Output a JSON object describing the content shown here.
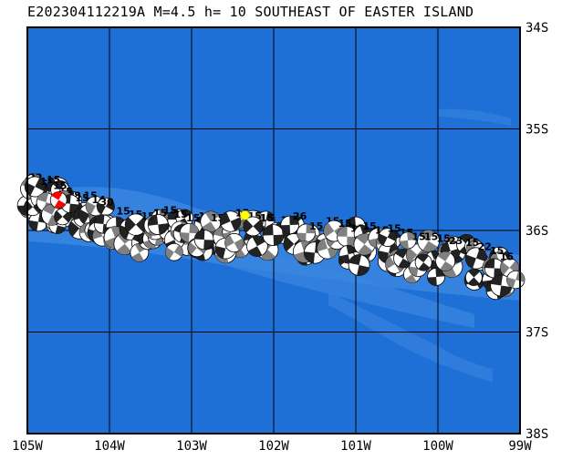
{
  "title": "E202304112219A M=4.5 h= 10 SOUTHEAST OF EASTER ISLAND",
  "event": {
    "id": "E202304112219A",
    "magnitude": "M=4.5",
    "depth": "h= 10",
    "region": "SOUTHEAST OF EASTER ISLAND",
    "lon": -102.35,
    "lat": -35.85
  },
  "bounds": {
    "lon_min": -105,
    "lon_max": -99,
    "lat_min": -38,
    "lat_max": -34
  },
  "lon_ticks": [
    "105W",
    "104W",
    "103W",
    "102W",
    "101W",
    "100W",
    "99W"
  ],
  "lat_ticks": [
    "34S",
    "35S",
    "36S",
    "37S",
    "38S"
  ],
  "colors": {
    "ocean_deep": "#1e6fd6",
    "ocean_shallow": "#3a86e0",
    "grid": "#000000",
    "frame": "#000000",
    "epicenter": "#ffff00",
    "highlight_mechanism": "#ff0000",
    "mechanism_dark": "#222222",
    "mechanism_light": "#ffffff",
    "mechanism_grey": "#808080"
  },
  "mechanisms": [
    {
      "lon": -104.92,
      "lat": -35.62,
      "depth": "22"
    },
    {
      "lon": -104.85,
      "lat": -35.68,
      "depth": "15"
    },
    {
      "lon": -104.78,
      "lat": -35.66,
      "depth": "15"
    },
    {
      "lon": -104.7,
      "lat": -35.64,
      "depth": "15"
    },
    {
      "lon": -104.62,
      "lat": -35.7,
      "depth": "15"
    },
    {
      "lon": -104.55,
      "lat": -35.76,
      "depth": "15"
    },
    {
      "lon": -104.45,
      "lat": -35.8,
      "depth": "18"
    },
    {
      "lon": -104.35,
      "lat": -35.82,
      "depth": "15"
    },
    {
      "lon": -104.25,
      "lat": -35.8,
      "depth": "15"
    },
    {
      "lon": -104.15,
      "lat": -35.84,
      "depth": "14"
    },
    {
      "lon": -104.05,
      "lat": -35.86,
      "depth": "30"
    },
    {
      "lon": -103.95,
      "lat": -35.9,
      "depth": ""
    },
    {
      "lon": -103.85,
      "lat": -35.95,
      "depth": "15"
    },
    {
      "lon": -103.7,
      "lat": -35.98,
      "depth": "15"
    },
    {
      "lon": -103.55,
      "lat": -36.0,
      "depth": "15"
    },
    {
      "lon": -103.4,
      "lat": -35.97,
      "depth": "15"
    },
    {
      "lon": -103.28,
      "lat": -35.94,
      "depth": "15"
    },
    {
      "lon": -103.15,
      "lat": -35.98,
      "depth": "15"
    },
    {
      "lon": -103.0,
      "lat": -36.02,
      "depth": "15"
    },
    {
      "lon": -102.85,
      "lat": -36.0,
      "depth": "15"
    },
    {
      "lon": -102.7,
      "lat": -36.02,
      "depth": "15"
    },
    {
      "lon": -102.55,
      "lat": -36.0,
      "depth": "15"
    },
    {
      "lon": -102.4,
      "lat": -35.97,
      "depth": "15"
    },
    {
      "lon": -102.25,
      "lat": -36.0,
      "depth": "15"
    },
    {
      "lon": -102.1,
      "lat": -36.02,
      "depth": "15"
    },
    {
      "lon": -101.85,
      "lat": -36.04,
      "depth": "15"
    },
    {
      "lon": -101.7,
      "lat": -36.0,
      "depth": "26"
    },
    {
      "lon": -101.5,
      "lat": -36.1,
      "depth": "15"
    },
    {
      "lon": -101.3,
      "lat": -36.05,
      "depth": "15"
    },
    {
      "lon": -101.15,
      "lat": -36.07,
      "depth": "15"
    },
    {
      "lon": -101.0,
      "lat": -36.12,
      "depth": "15"
    },
    {
      "lon": -100.85,
      "lat": -36.1,
      "depth": "15"
    },
    {
      "lon": -100.7,
      "lat": -36.14,
      "depth": "15"
    },
    {
      "lon": -100.55,
      "lat": -36.12,
      "depth": "15"
    },
    {
      "lon": -100.4,
      "lat": -36.16,
      "depth": "15"
    },
    {
      "lon": -100.25,
      "lat": -36.2,
      "depth": "15"
    },
    {
      "lon": -100.1,
      "lat": -36.2,
      "depth": "15"
    },
    {
      "lon": -99.95,
      "lat": -36.22,
      "depth": "15"
    },
    {
      "lon": -99.8,
      "lat": -36.24,
      "depth": "23"
    },
    {
      "lon": -99.6,
      "lat": -36.26,
      "depth": "15"
    },
    {
      "lon": -99.45,
      "lat": -36.3,
      "depth": "22"
    },
    {
      "lon": -99.3,
      "lat": -36.34,
      "depth": "15"
    },
    {
      "lon": -99.18,
      "lat": -36.4,
      "depth": "15"
    }
  ],
  "highlight": {
    "lon": -104.62,
    "lat": -35.7
  }
}
